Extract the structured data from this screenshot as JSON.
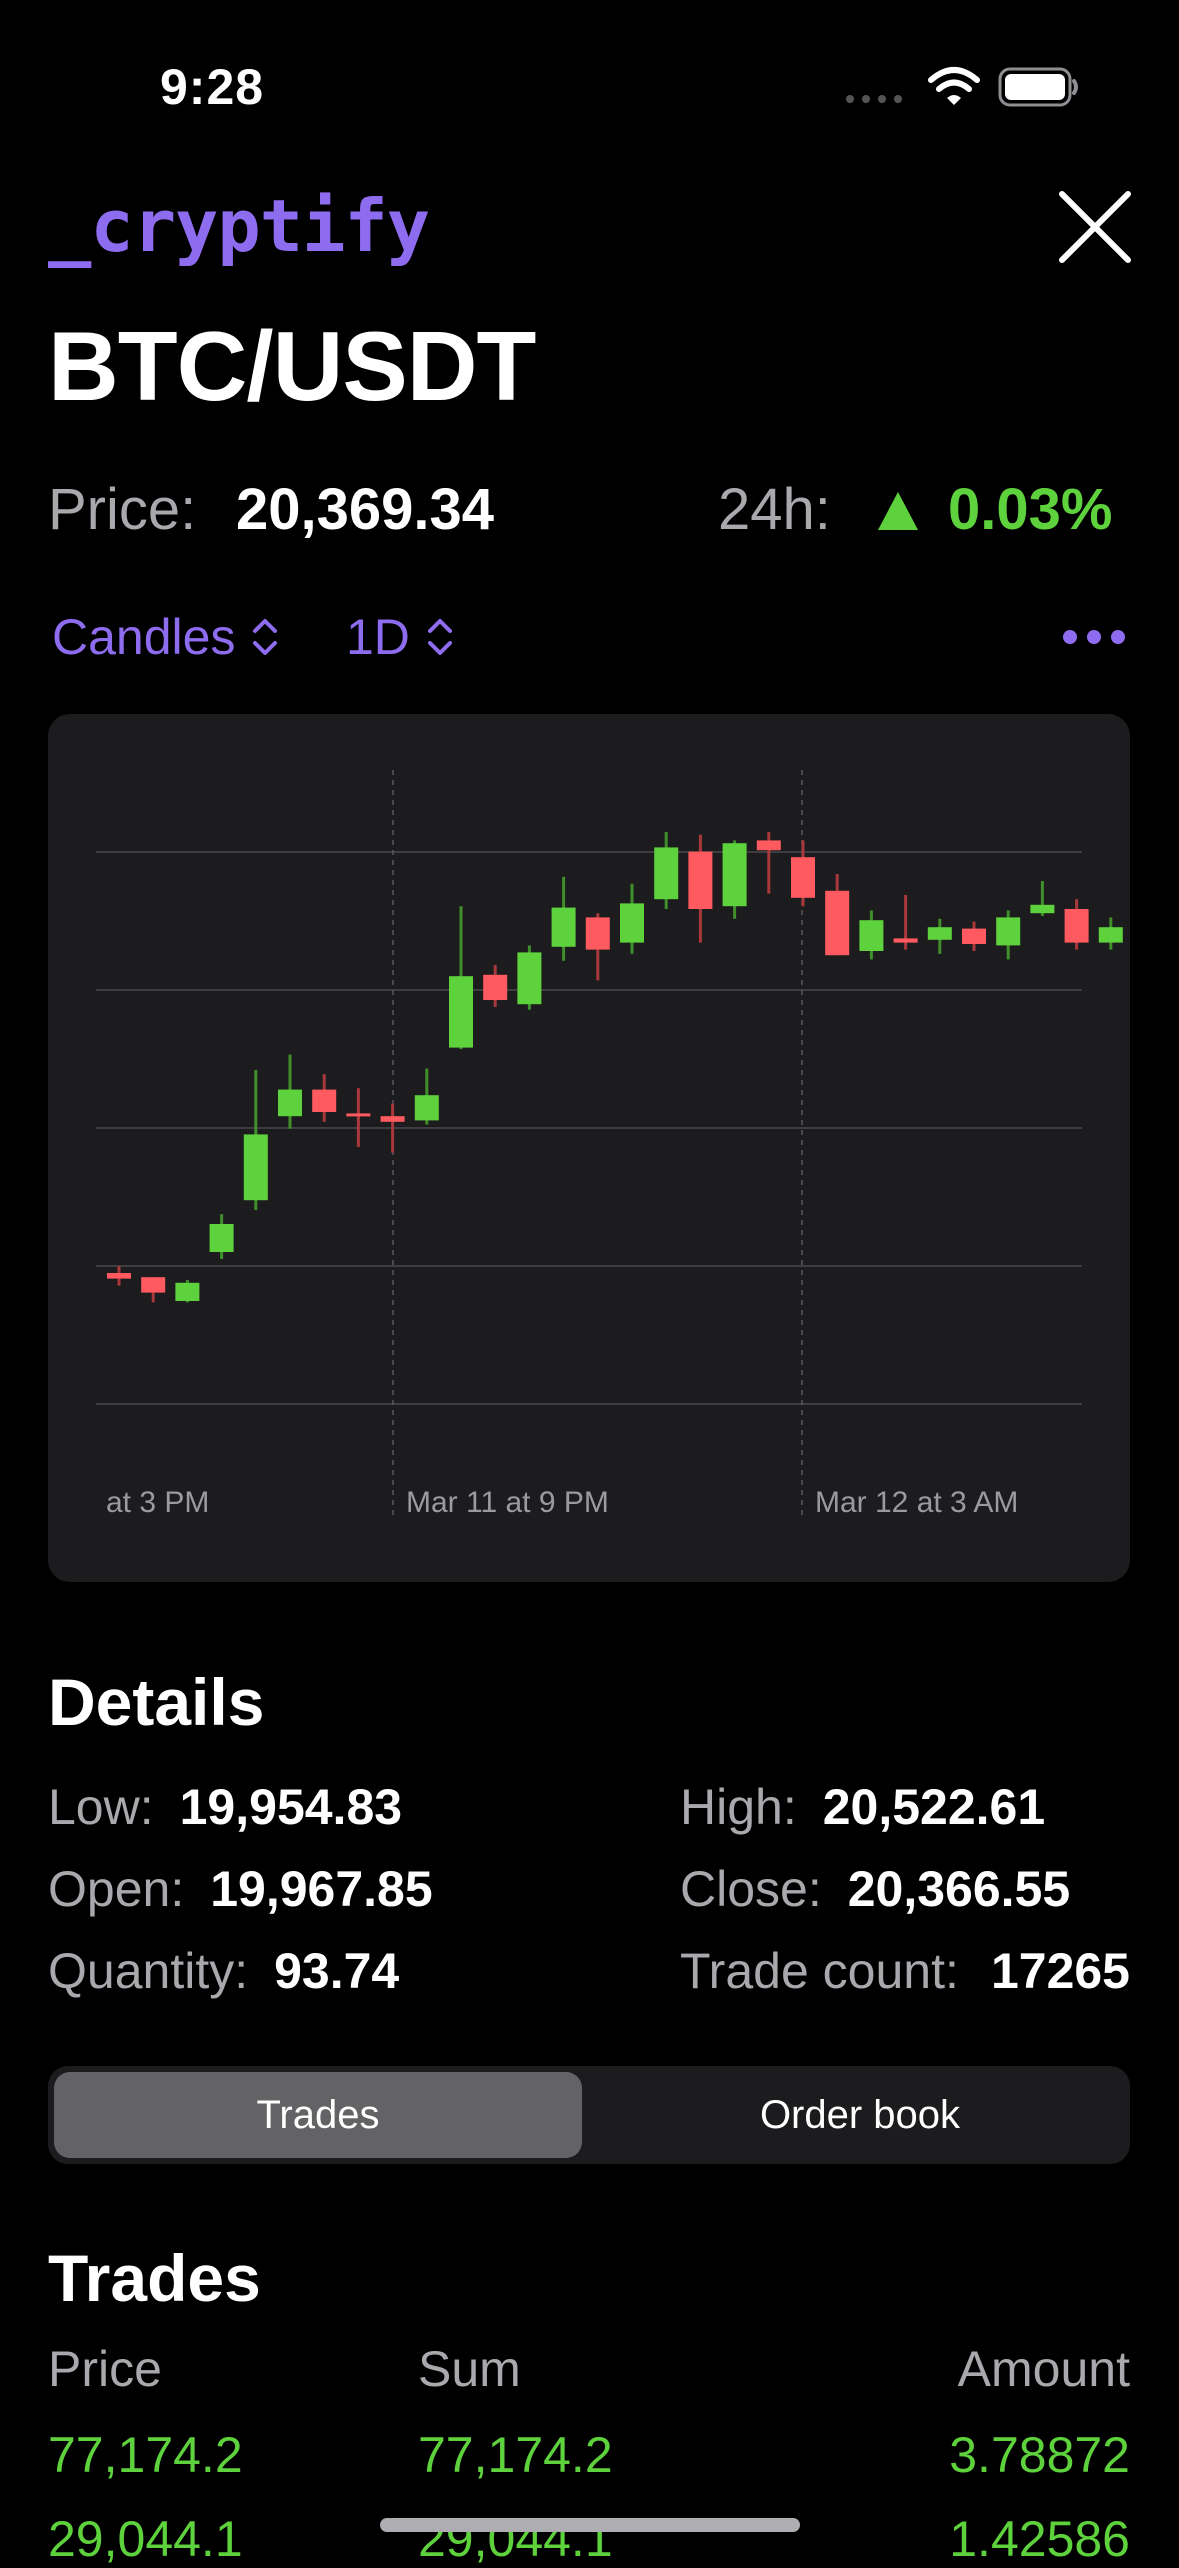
{
  "status_bar": {
    "time": "9:28"
  },
  "header": {
    "logo": "_cryptify",
    "pair": "BTC/USDT",
    "price_label": "Price:",
    "price_value": "20,369.34",
    "change_label": "24h:",
    "change_value": "0.03%"
  },
  "controls": {
    "chart_type": "Candles",
    "interval": "1D"
  },
  "chart_data": {
    "type": "candlestick",
    "x_tick_labels": [
      "at 3 PM",
      "Mar 11 at 9 PM",
      "Mar 12 at 3 AM"
    ],
    "grid": true,
    "colors": {
      "up": "#5ed23d",
      "down": "#ff5a5f"
    },
    "candles": [
      {
        "open": 95,
        "close": 91,
        "high": 100,
        "low": 86
      },
      {
        "open": 92,
        "close": 81,
        "high": 92,
        "low": 74
      },
      {
        "open": 75,
        "close": 88,
        "high": 90,
        "low": 74
      },
      {
        "open": 110,
        "close": 130,
        "high": 137,
        "low": 105
      },
      {
        "open": 147,
        "close": 194,
        "high": 240,
        "low": 140
      },
      {
        "open": 207,
        "close": 226,
        "high": 251,
        "low": 198
      },
      {
        "open": 226,
        "close": 210,
        "high": 237,
        "low": 203
      },
      {
        "open": 209,
        "close": 208,
        "high": 227,
        "low": 185
      },
      {
        "open": 207,
        "close": 203,
        "high": 216,
        "low": 181
      },
      {
        "open": 204,
        "close": 222,
        "high": 241,
        "low": 201
      },
      {
        "open": 256,
        "close": 307,
        "high": 357,
        "low": 255
      },
      {
        "open": 308,
        "close": 290,
        "high": 315,
        "low": 285
      },
      {
        "open": 287,
        "close": 324,
        "high": 329,
        "low": 283
      },
      {
        "open": 328,
        "close": 356,
        "high": 378,
        "low": 318
      },
      {
        "open": 349,
        "close": 326,
        "high": 352,
        "low": 304
      },
      {
        "open": 331,
        "close": 359,
        "high": 373,
        "low": 323
      },
      {
        "open": 362,
        "close": 399,
        "high": 410,
        "low": 355
      },
      {
        "open": 396,
        "close": 355,
        "high": 408,
        "low": 331
      },
      {
        "open": 357,
        "close": 402,
        "high": 404,
        "low": 348
      },
      {
        "open": 404,
        "close": 397,
        "high": 410,
        "low": 366
      },
      {
        "open": 392,
        "close": 363,
        "high": 404,
        "low": 357
      },
      {
        "open": 368,
        "close": 322,
        "high": 380,
        "low": 322
      },
      {
        "open": 325,
        "close": 347,
        "high": 354,
        "low": 319
      },
      {
        "open": 334,
        "close": 331,
        "high": 365,
        "low": 326
      },
      {
        "open": 333,
        "close": 342,
        "high": 348,
        "low": 323
      },
      {
        "open": 341,
        "close": 330,
        "high": 346,
        "low": 325
      },
      {
        "open": 329,
        "close": 349,
        "high": 354,
        "low": 319
      },
      {
        "open": 352,
        "close": 358,
        "high": 375,
        "low": 350
      },
      {
        "open": 355,
        "close": 331,
        "high": 362,
        "low": 326
      },
      {
        "open": 331,
        "close": 342,
        "high": 349,
        "low": 326
      }
    ]
  },
  "details": {
    "title": "Details",
    "low_label": "Low:",
    "low_value": "19,954.83",
    "high_label": "High:",
    "high_value": "20,522.61",
    "open_label": "Open:",
    "open_value": "19,967.85",
    "close_label": "Close:",
    "close_value": "20,366.55",
    "quantity_label": "Quantity:",
    "quantity_value": "93.74",
    "trade_count_label": "Trade count:",
    "trade_count_value": "17265"
  },
  "segment": {
    "tabs": [
      "Trades",
      "Order book"
    ],
    "selected": "Trades"
  },
  "trades": {
    "title": "Trades",
    "columns": [
      "Price",
      "Sum",
      "Amount"
    ],
    "rows": [
      [
        "77,174.2",
        "77,174.2",
        "3.78872"
      ],
      [
        "29,044.1",
        "29,044.1",
        "1.42586"
      ]
    ]
  },
  "colors": {
    "accent": "#8e6cf0",
    "positive": "#5ed23d",
    "negative": "#ff5a5f",
    "card": "#1c1c1e"
  }
}
